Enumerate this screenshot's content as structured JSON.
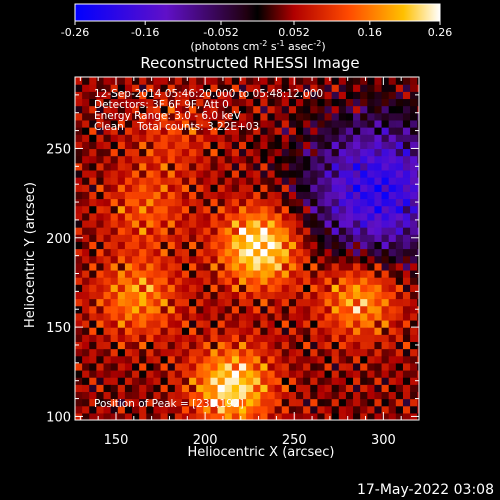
{
  "colors": {
    "background": "#000000",
    "foreground": "#ffffff"
  },
  "colorbar": {
    "colormap": "blue-purple-black-red-yellow-white",
    "ticks": [
      "-0.26",
      "-0.16",
      "-0.052",
      "0.052",
      "0.16",
      "0.26"
    ],
    "unit_label": "(photons cm",
    "unit_sup1": "-2",
    "unit_mid1": " s",
    "unit_sup2": "-1",
    "unit_mid2": " asec",
    "unit_sup3": "-2",
    "unit_end": ")"
  },
  "title": "Reconstructed RHESSI Image",
  "annotations": {
    "time": "12-Sep-2014 05:46:20.000 to 05:48:12.000",
    "detectors": "Detectors: 3F 6F 9F, Att 0",
    "energy": "Energy Range: 3.0 - 6.0 keV",
    "method": "Clean    Total counts: 3.22E+03",
    "peak": "Position of Peak = [231,192]"
  },
  "footer": {
    "timestamp": "17-May-2022 03:08"
  },
  "chart_data": {
    "type": "heatmap",
    "xlabel": "Heliocentric X (arcsec)",
    "ylabel": "Heliocentric Y (arcsec)",
    "xlim": [
      127,
      320
    ],
    "ylim": [
      98,
      290
    ],
    "xticks": [
      "150",
      "200",
      "250",
      "300"
    ],
    "yticks": [
      "100",
      "150",
      "200",
      "250"
    ],
    "xtick_values": [
      150,
      200,
      250,
      300
    ],
    "ytick_values": [
      100,
      150,
      200,
      250
    ],
    "value_range": [
      -0.26,
      0.26
    ],
    "peak_position": [
      231,
      192
    ],
    "sources": [
      {
        "x": 229,
        "y": 193,
        "value": 0.26
      },
      {
        "x": 213,
        "y": 115,
        "value": 0.24
      },
      {
        "x": 285,
        "y": 165,
        "value": 0.2
      },
      {
        "x": 160,
        "y": 165,
        "value": 0.17
      },
      {
        "x": 165,
        "y": 215,
        "value": 0.13
      },
      {
        "x": 180,
        "y": 255,
        "value": 0.1
      }
    ],
    "negative_region": {
      "x": 295,
      "y": 225,
      "value": -0.2
    }
  }
}
